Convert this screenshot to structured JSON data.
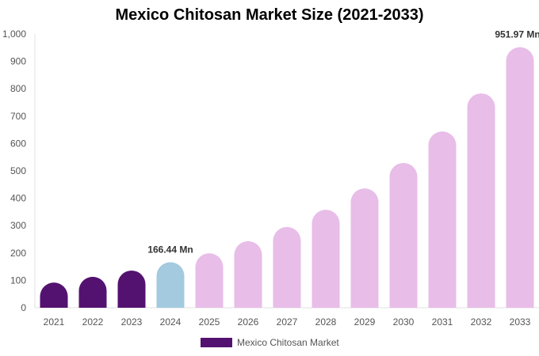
{
  "chart_data": {
    "type": "bar",
    "title": "Mexico Chitosan Market Size (2021-2033)",
    "categories": [
      "2021",
      "2022",
      "2023",
      "2024",
      "2025",
      "2026",
      "2027",
      "2028",
      "2029",
      "2030",
      "2031",
      "2032",
      "2033"
    ],
    "series": [
      {
        "name": "Mexico Chitosan Market",
        "values": [
          92,
          113,
          136,
          166.44,
          199,
          243,
          295,
          358,
          436,
          529,
          644,
          783,
          951.97
        ]
      }
    ],
    "data_labels": [
      {
        "category": "2024",
        "text": "166.44 Mn"
      },
      {
        "category": "2033",
        "text": "951.97 Mn"
      }
    ],
    "ylim": [
      0,
      1000
    ],
    "yticks": [
      "0",
      "100",
      "200",
      "300",
      "400",
      "500",
      "600",
      "700",
      "800",
      "900",
      "1,000"
    ],
    "xlabel": "",
    "ylabel": "",
    "grid": false,
    "legend": "bottom",
    "colors": {
      "historical": "#541270",
      "current": "#a3cadf",
      "forecast": "#e8bde8"
    }
  }
}
